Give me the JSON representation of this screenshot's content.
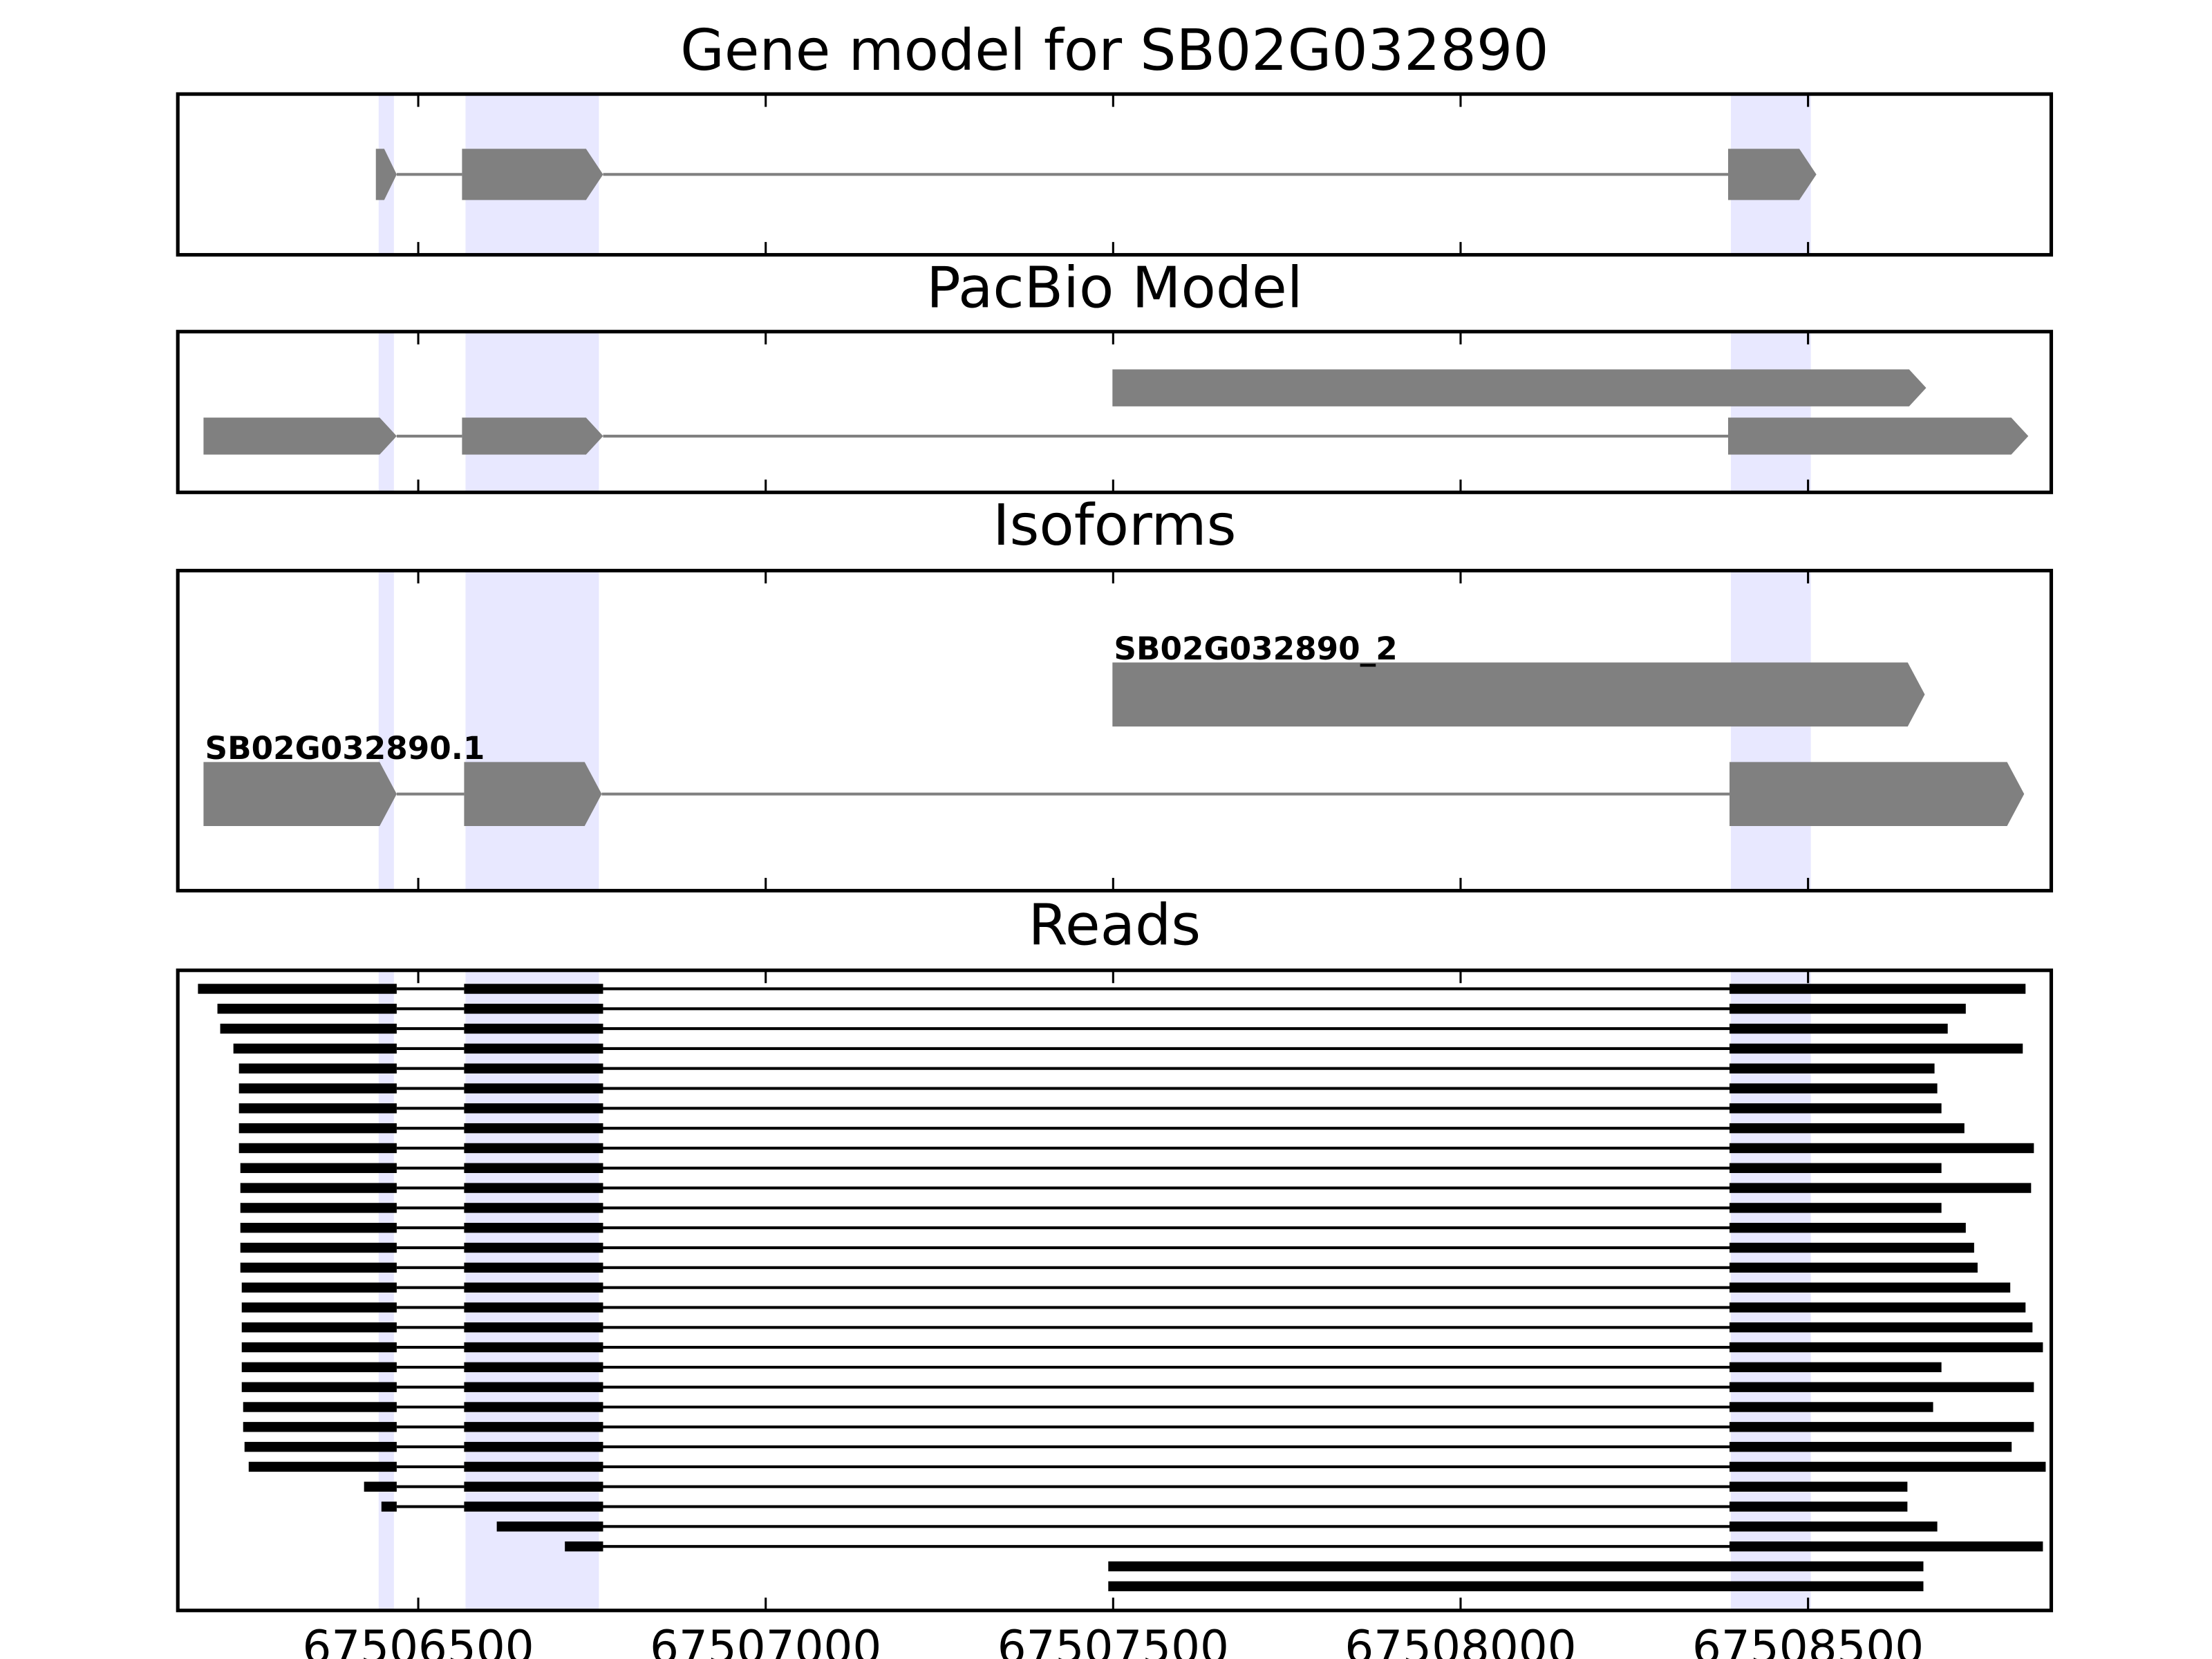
{
  "chart_data": {
    "type": "gene-tracks",
    "xlim": [
      67506154,
      67508850
    ],
    "xticks": [
      67506500,
      67507000,
      67507500,
      67508000,
      67508500
    ],
    "highlights": [
      [
        67506443,
        67506465
      ],
      [
        67506568,
        67506760
      ],
      [
        67508389,
        67508504
      ]
    ],
    "highlight_color": "#e6e6ff",
    "panels": [
      {
        "title": "Gene model for SB02G032890",
        "style": "model",
        "color": "#808080",
        "rows": [
          {
            "blocks": [
              [
                67506439,
                67506469
              ],
              [
                67506563,
                67506766
              ],
              [
                67508385,
                67508512
              ]
            ]
          }
        ]
      },
      {
        "title": "PacBio Model",
        "style": "model",
        "color": "#808080",
        "rows": [
          {
            "blocks": [
              [
                67507499,
                67508670
              ]
            ]
          },
          {
            "blocks": [
              [
                67506191,
                67506469
              ],
              [
                67506563,
                67506766
              ],
              [
                67508385,
                67508817
              ]
            ]
          }
        ]
      },
      {
        "title": "Isoforms",
        "style": "model",
        "color": "#808080",
        "rows": [
          {
            "name": "SB02G032890_2",
            "blocks": [
              [
                67507499,
                67508668
              ]
            ]
          },
          {
            "name": "SB02G032890.1",
            "blocks": [
              [
                67506191,
                67506469
              ],
              [
                67506566,
                67506764
              ],
              [
                67508387,
                67508811
              ]
            ]
          }
        ]
      },
      {
        "title": "Reads",
        "style": "reads",
        "color": "#000000",
        "rows": [
          {
            "blocks": [
              [
                67506183,
                67506469
              ],
              [
                67506566,
                67506766
              ],
              [
                67508387,
                67508813
              ]
            ]
          },
          {
            "blocks": [
              [
                67506211,
                67506469
              ],
              [
                67506566,
                67506766
              ],
              [
                67508387,
                67508727
              ]
            ]
          },
          {
            "blocks": [
              [
                67506215,
                67506469
              ],
              [
                67506566,
                67506766
              ],
              [
                67508387,
                67508701
              ]
            ]
          },
          {
            "blocks": [
              [
                67506234,
                67506469
              ],
              [
                67506566,
                67506766
              ],
              [
                67508387,
                67508809
              ]
            ]
          },
          {
            "blocks": [
              [
                67506242,
                67506469
              ],
              [
                67506566,
                67506766
              ],
              [
                67508387,
                67508682
              ]
            ]
          },
          {
            "blocks": [
              [
                67506242,
                67506469
              ],
              [
                67506566,
                67506766
              ],
              [
                67508387,
                67508686
              ]
            ]
          },
          {
            "blocks": [
              [
                67506242,
                67506469
              ],
              [
                67506566,
                67506766
              ],
              [
                67508387,
                67508692
              ]
            ]
          },
          {
            "blocks": [
              [
                67506242,
                67506469
              ],
              [
                67506566,
                67506766
              ],
              [
                67508387,
                67508725
              ]
            ]
          },
          {
            "blocks": [
              [
                67506242,
                67506469
              ],
              [
                67506566,
                67506766
              ],
              [
                67508387,
                67508825
              ]
            ]
          },
          {
            "blocks": [
              [
                67506244,
                67506469
              ],
              [
                67506566,
                67506766
              ],
              [
                67508387,
                67508692
              ]
            ]
          },
          {
            "blocks": [
              [
                67506244,
                67506469
              ],
              [
                67506566,
                67506766
              ],
              [
                67508387,
                67508821
              ]
            ]
          },
          {
            "blocks": [
              [
                67506244,
                67506469
              ],
              [
                67506566,
                67506766
              ],
              [
                67508387,
                67508692
              ]
            ]
          },
          {
            "blocks": [
              [
                67506244,
                67506469
              ],
              [
                67506566,
                67506766
              ],
              [
                67508387,
                67508727
              ]
            ]
          },
          {
            "blocks": [
              [
                67506244,
                67506469
              ],
              [
                67506566,
                67506766
              ],
              [
                67508387,
                67508739
              ]
            ]
          },
          {
            "blocks": [
              [
                67506244,
                67506469
              ],
              [
                67506566,
                67506766
              ],
              [
                67508387,
                67508744
              ]
            ]
          },
          {
            "blocks": [
              [
                67506246,
                67506469
              ],
              [
                67506566,
                67506766
              ],
              [
                67508387,
                67508791
              ]
            ]
          },
          {
            "blocks": [
              [
                67506246,
                67506469
              ],
              [
                67506566,
                67506766
              ],
              [
                67508387,
                67508813
              ]
            ]
          },
          {
            "blocks": [
              [
                67506246,
                67506469
              ],
              [
                67506566,
                67506766
              ],
              [
                67508387,
                67508823
              ]
            ]
          },
          {
            "blocks": [
              [
                67506246,
                67506469
              ],
              [
                67506566,
                67506766
              ],
              [
                67508387,
                67508838
              ]
            ]
          },
          {
            "blocks": [
              [
                67506246,
                67506469
              ],
              [
                67506566,
                67506766
              ],
              [
                67508387,
                67508692
              ]
            ]
          },
          {
            "blocks": [
              [
                67506246,
                67506469
              ],
              [
                67506566,
                67506766
              ],
              [
                67508387,
                67508825
              ]
            ]
          },
          {
            "blocks": [
              [
                67506248,
                67506469
              ],
              [
                67506566,
                67506766
              ],
              [
                67508387,
                67508680
              ]
            ]
          },
          {
            "blocks": [
              [
                67506248,
                67506469
              ],
              [
                67506566,
                67506766
              ],
              [
                67508387,
                67508825
              ]
            ]
          },
          {
            "blocks": [
              [
                67506250,
                67506469
              ],
              [
                67506566,
                67506766
              ],
              [
                67508387,
                67508793
              ]
            ]
          },
          {
            "blocks": [
              [
                67506256,
                67506469
              ],
              [
                67506566,
                67506766
              ],
              [
                67508387,
                67508842
              ]
            ]
          },
          {
            "blocks": [
              [
                67506422,
                67506469
              ],
              [
                67506566,
                67506766
              ],
              [
                67508387,
                67508643
              ]
            ]
          },
          {
            "blocks": [
              [
                67506447,
                67506469
              ],
              [
                67506566,
                67506766
              ],
              [
                67508387,
                67508643
              ]
            ]
          },
          {
            "blocks": [
              [
                67506613,
                67506766
              ],
              [
                67508387,
                67508686
              ]
            ]
          },
          {
            "blocks": [
              [
                67506711,
                67506766
              ],
              [
                67508387,
                67508838
              ]
            ]
          },
          {
            "blocks": [
              [
                67507493,
                67508666
              ]
            ]
          },
          {
            "blocks": [
              [
                67507493,
                67508666
              ]
            ]
          }
        ]
      }
    ]
  }
}
